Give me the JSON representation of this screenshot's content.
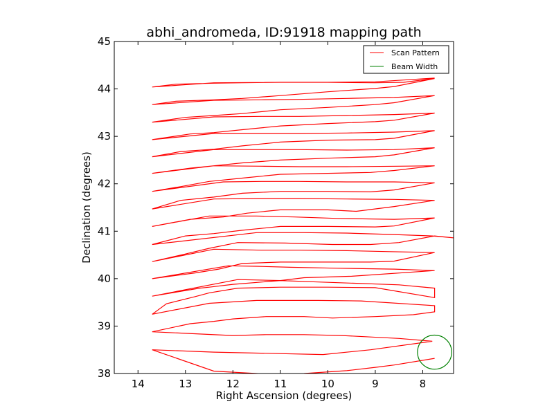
{
  "chart_data": {
    "type": "line",
    "title": "abhi_andromeda, ID:91918 mapping path",
    "xlabel": "Right Ascension (degrees)",
    "ylabel": "Declination (degrees)",
    "xlim": [
      14.5,
      7.35
    ],
    "ylim": [
      38,
      45
    ],
    "x_ticks": [
      14,
      13,
      12,
      11,
      10,
      9,
      8
    ],
    "y_ticks": [
      38,
      39,
      40,
      41,
      42,
      43,
      44,
      45
    ],
    "x_tick_labels": [
      "14",
      "13",
      "12",
      "11",
      "10",
      "9",
      "8"
    ],
    "y_tick_labels": [
      "38",
      "39",
      "40",
      "41",
      "42",
      "43",
      "44",
      "45"
    ],
    "grid": false,
    "legend_position": "top-right",
    "legend": [
      "Scan Pattern",
      "Beam Width"
    ],
    "colors": {
      "scan": "#ff0000",
      "beam": "#008000"
    },
    "series": [
      {
        "name": "Scan Pattern",
        "points": [
          [
            7.75,
            38.32
          ],
          [
            8.6,
            38.18
          ],
          [
            9.0,
            38.13
          ],
          [
            9.6,
            38.06
          ],
          [
            10.5,
            38.0
          ],
          [
            11.3,
            37.99
          ],
          [
            12.4,
            38.05
          ],
          [
            13.7,
            38.5
          ],
          [
            12.4,
            38.45
          ],
          [
            10.1,
            38.4
          ],
          [
            9.1,
            38.5
          ],
          [
            7.8,
            38.68
          ],
          [
            8.5,
            38.74
          ],
          [
            9.7,
            38.8
          ],
          [
            10.5,
            38.82
          ],
          [
            11.3,
            38.82
          ],
          [
            12.0,
            38.8
          ],
          [
            13.7,
            38.88
          ],
          [
            12.9,
            39.05
          ],
          [
            12.4,
            39.1
          ],
          [
            12.0,
            39.15
          ],
          [
            11.3,
            39.2
          ],
          [
            10.5,
            39.2
          ],
          [
            9.9,
            39.17
          ],
          [
            9.0,
            39.2
          ],
          [
            8.2,
            39.24
          ],
          [
            7.75,
            39.3
          ],
          [
            7.75,
            39.43
          ],
          [
            9.3,
            39.53
          ],
          [
            10.2,
            39.54
          ],
          [
            11.5,
            39.54
          ],
          [
            12.5,
            39.48
          ],
          [
            13.7,
            39.25
          ],
          [
            13.4,
            39.47
          ],
          [
            12.8,
            39.62
          ],
          [
            12.5,
            39.7
          ],
          [
            11.9,
            39.8
          ],
          [
            11.0,
            39.82
          ],
          [
            10.0,
            39.82
          ],
          [
            9.0,
            39.81
          ],
          [
            7.75,
            39.6
          ],
          [
            7.75,
            39.8
          ],
          [
            8.5,
            39.87
          ],
          [
            10.2,
            39.93
          ],
          [
            11.0,
            39.96
          ],
          [
            11.9,
            39.98
          ],
          [
            13.7,
            39.63
          ],
          [
            12.7,
            39.8
          ],
          [
            12.5,
            39.82
          ],
          [
            12.0,
            39.88
          ],
          [
            11.0,
            39.96
          ],
          [
            10.5,
            40.02
          ],
          [
            9.5,
            40.05
          ],
          [
            7.75,
            40.17
          ],
          [
            8.6,
            40.2
          ],
          [
            9.8,
            40.22
          ],
          [
            10.8,
            40.24
          ],
          [
            11.5,
            40.26
          ],
          [
            12.1,
            40.27
          ],
          [
            13.7,
            40.0
          ],
          [
            12.8,
            40.12
          ],
          [
            12.3,
            40.2
          ],
          [
            11.8,
            40.32
          ],
          [
            11.0,
            40.35
          ],
          [
            10.0,
            40.35
          ],
          [
            9.1,
            40.35
          ],
          [
            8.6,
            40.37
          ],
          [
            7.75,
            40.55
          ],
          [
            8.7,
            40.57
          ],
          [
            9.6,
            40.59
          ],
          [
            10.6,
            40.6
          ],
          [
            11.4,
            40.6
          ],
          [
            12.4,
            40.62
          ],
          [
            13.7,
            40.36
          ],
          [
            13.0,
            40.52
          ],
          [
            12.5,
            40.64
          ],
          [
            11.9,
            40.76
          ],
          [
            10.9,
            40.75
          ],
          [
            9.9,
            40.72
          ],
          [
            9.1,
            40.72
          ],
          [
            8.5,
            40.76
          ],
          [
            7.75,
            40.9
          ],
          [
            7.35,
            40.86
          ],
          [
            7.8,
            40.9
          ],
          [
            8.6,
            40.93
          ],
          [
            9.6,
            40.96
          ],
          [
            10.5,
            40.97
          ],
          [
            11.5,
            40.97
          ],
          [
            13.7,
            40.72
          ],
          [
            13.0,
            40.9
          ],
          [
            12.4,
            40.95
          ],
          [
            11.8,
            41.02
          ],
          [
            11.0,
            41.1
          ],
          [
            10.0,
            41.1
          ],
          [
            9.0,
            41.09
          ],
          [
            8.6,
            41.11
          ],
          [
            7.75,
            41.28
          ],
          [
            8.6,
            41.25
          ],
          [
            9.8,
            41.27
          ],
          [
            10.7,
            41.3
          ],
          [
            11.5,
            41.32
          ],
          [
            12.5,
            41.32
          ],
          [
            13.7,
            41.1
          ],
          [
            12.9,
            41.25
          ],
          [
            12.2,
            41.3
          ],
          [
            11.7,
            41.38
          ],
          [
            11.0,
            41.45
          ],
          [
            10.0,
            41.45
          ],
          [
            9.4,
            41.42
          ],
          [
            8.6,
            41.52
          ],
          [
            7.75,
            41.65
          ],
          [
            8.6,
            41.67
          ],
          [
            9.6,
            41.68
          ],
          [
            10.6,
            41.69
          ],
          [
            11.4,
            41.69
          ],
          [
            12.4,
            41.68
          ],
          [
            13.7,
            41.47
          ],
          [
            13.1,
            41.65
          ],
          [
            12.4,
            41.72
          ],
          [
            11.8,
            41.8
          ],
          [
            11.0,
            41.84
          ],
          [
            10.0,
            41.84
          ],
          [
            9.1,
            41.83
          ],
          [
            8.6,
            41.87
          ],
          [
            7.75,
            42.02
          ],
          [
            8.6,
            42.04
          ],
          [
            9.6,
            42.04
          ],
          [
            10.6,
            42.05
          ],
          [
            11.4,
            42.05
          ],
          [
            12.2,
            42.04
          ],
          [
            13.7,
            41.84
          ],
          [
            13.1,
            41.94
          ],
          [
            12.5,
            42.05
          ],
          [
            11.8,
            42.12
          ],
          [
            11.0,
            42.2
          ],
          [
            10.0,
            42.22
          ],
          [
            9.1,
            42.24
          ],
          [
            8.6,
            42.28
          ],
          [
            7.75,
            42.38
          ],
          [
            8.5,
            42.37
          ],
          [
            9.6,
            42.36
          ],
          [
            10.6,
            42.36
          ],
          [
            11.4,
            42.37
          ],
          [
            12.4,
            42.38
          ],
          [
            13.7,
            42.22
          ],
          [
            12.9,
            42.33
          ],
          [
            12.4,
            42.38
          ],
          [
            11.8,
            42.44
          ],
          [
            11.0,
            42.5
          ],
          [
            10.0,
            42.54
          ],
          [
            9.0,
            42.57
          ],
          [
            8.6,
            42.61
          ],
          [
            7.75,
            42.76
          ],
          [
            8.6,
            42.72
          ],
          [
            9.6,
            42.71
          ],
          [
            10.6,
            42.72
          ],
          [
            11.4,
            42.72
          ],
          [
            12.4,
            42.72
          ],
          [
            13.7,
            42.57
          ],
          [
            13.1,
            42.68
          ],
          [
            12.4,
            42.73
          ],
          [
            11.8,
            42.8
          ],
          [
            11.0,
            42.88
          ],
          [
            10.0,
            42.92
          ],
          [
            9.0,
            42.93
          ],
          [
            8.6,
            42.96
          ],
          [
            7.75,
            43.12
          ],
          [
            8.6,
            43.09
          ],
          [
            9.6,
            43.07
          ],
          [
            10.6,
            43.06
          ],
          [
            11.4,
            43.06
          ],
          [
            12.4,
            43.06
          ],
          [
            13.7,
            42.93
          ],
          [
            12.9,
            43.05
          ],
          [
            12.4,
            43.08
          ],
          [
            11.8,
            43.14
          ],
          [
            11.0,
            43.22
          ],
          [
            10.0,
            43.27
          ],
          [
            9.0,
            43.31
          ],
          [
            8.6,
            43.34
          ],
          [
            7.75,
            43.49
          ],
          [
            8.6,
            43.46
          ],
          [
            9.6,
            43.44
          ],
          [
            10.6,
            43.42
          ],
          [
            11.4,
            43.42
          ],
          [
            12.4,
            43.41
          ],
          [
            13.7,
            43.3
          ],
          [
            13.0,
            43.4
          ],
          [
            12.4,
            43.44
          ],
          [
            11.8,
            43.48
          ],
          [
            11.0,
            43.56
          ],
          [
            10.0,
            43.61
          ],
          [
            9.0,
            43.67
          ],
          [
            8.6,
            43.71
          ],
          [
            7.75,
            43.86
          ],
          [
            8.6,
            43.82
          ],
          [
            9.6,
            43.8
          ],
          [
            10.6,
            43.78
          ],
          [
            11.4,
            43.77
          ],
          [
            12.4,
            43.76
          ],
          [
            13.7,
            43.67
          ],
          [
            13.2,
            43.74
          ],
          [
            12.4,
            43.77
          ],
          [
            11.8,
            43.8
          ],
          [
            11.0,
            43.86
          ],
          [
            10.0,
            43.94
          ],
          [
            9.0,
            44.01
          ],
          [
            8.6,
            44.05
          ],
          [
            7.75,
            44.22
          ],
          [
            8.4,
            44.14
          ],
          [
            9.0,
            44.13
          ],
          [
            10.0,
            44.14
          ],
          [
            11.0,
            44.14
          ],
          [
            12.4,
            44.13
          ],
          [
            13.7,
            44.04
          ],
          [
            13.2,
            44.1
          ],
          [
            12.4,
            44.12
          ],
          [
            11.8,
            44.13
          ],
          [
            11.0,
            44.14
          ],
          [
            10.0,
            44.14
          ],
          [
            9.0,
            44.15
          ],
          [
            7.75,
            44.23
          ]
        ]
      },
      {
        "name": "Beam Width",
        "shape": "circle",
        "center": [
          7.75,
          38.45
        ],
        "radius_ra_deg": 0.36
      }
    ]
  }
}
